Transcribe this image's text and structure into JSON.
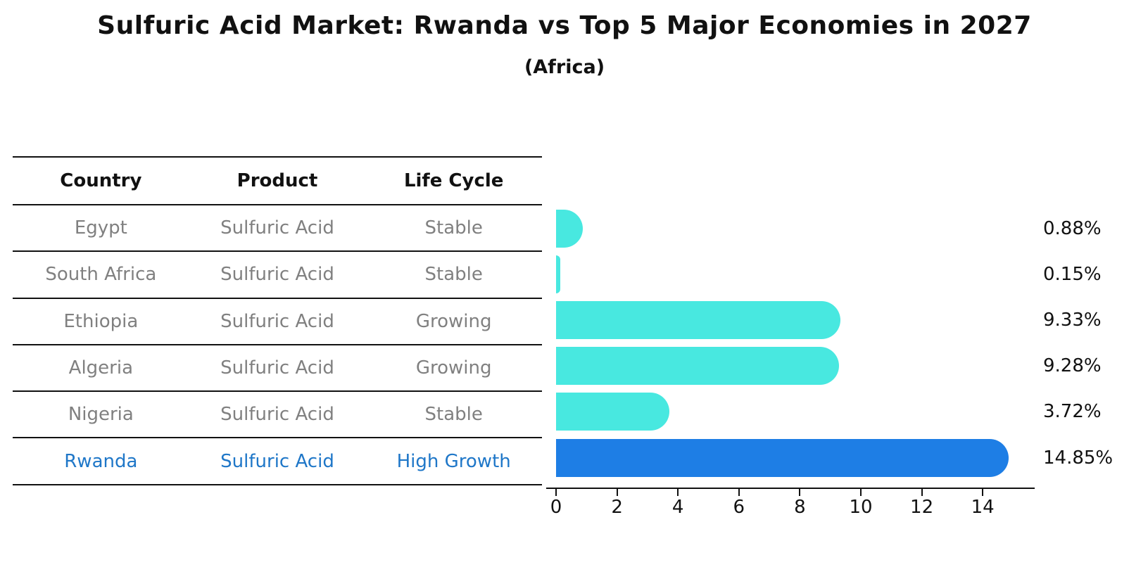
{
  "title": "Sulfuric Acid Market: Rwanda vs Top 5 Major Economies in 2027",
  "subtitle": "(Africa)",
  "table": {
    "headers": [
      "Country",
      "Product",
      "Life Cycle"
    ],
    "rows": [
      {
        "country": "Egypt",
        "product": "Sulfuric Acid",
        "life_cycle": "Stable",
        "highlight": false
      },
      {
        "country": "South Africa",
        "product": "Sulfuric Acid",
        "life_cycle": "Stable",
        "highlight": false
      },
      {
        "country": "Ethiopia",
        "product": "Sulfuric Acid",
        "life_cycle": "Growing",
        "highlight": false
      },
      {
        "country": "Algeria",
        "product": "Sulfuric Acid",
        "life_cycle": "Growing",
        "highlight": false
      },
      {
        "country": "Nigeria",
        "product": "Sulfuric Acid",
        "life_cycle": "Stable",
        "highlight": false
      },
      {
        "country": "Rwanda",
        "product": "Sulfuric Acid",
        "life_cycle": "High Growth",
        "highlight": true
      }
    ]
  },
  "chart_data": {
    "type": "bar",
    "orientation": "horizontal",
    "title": "Sulfuric Acid Market: Rwanda vs Top 5 Major Economies in 2027",
    "subtitle": "(Africa)",
    "categories": [
      "Egypt",
      "South Africa",
      "Ethiopia",
      "Algeria",
      "Nigeria",
      "Rwanda"
    ],
    "values": [
      0.88,
      0.15,
      9.33,
      9.28,
      3.72,
      14.85
    ],
    "value_labels": [
      "0.88%",
      "0.15%",
      "9.33%",
      "9.28%",
      "3.72%",
      "14.85%"
    ],
    "highlight_index": 5,
    "xticks": [
      0,
      2,
      4,
      6,
      8,
      10,
      12,
      14
    ],
    "xlim": [
      0,
      15.7
    ],
    "grid": false,
    "legend": "none",
    "xlabel": "",
    "ylabel": ""
  },
  "colors": {
    "bar": "#48e8e0",
    "highlight_bar": "#1e7ee5",
    "highlight_bar_edge": "#1e7ee5",
    "highlight_text": "#1f77c8",
    "table_text": "#808080",
    "header_text": "#111111",
    "axis": "#111111"
  }
}
